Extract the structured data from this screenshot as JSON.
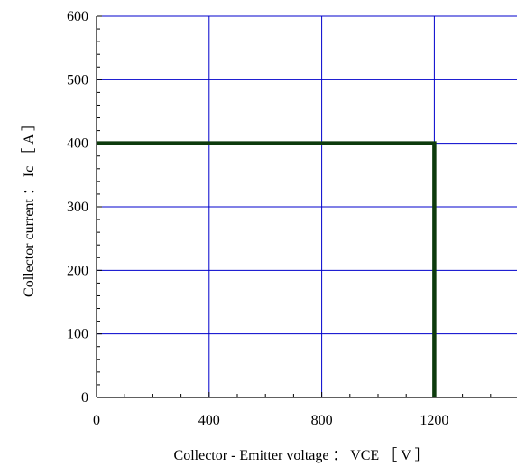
{
  "chart_data": {
    "type": "line",
    "title": "",
    "xlabel": "Collector - Emitter voltage ： VCE ［ V ］",
    "ylabel": "Collector current ： Ic ［ A ］",
    "xlim": [
      0,
      1500
    ],
    "ylim": [
      0,
      600
    ],
    "x_ticks": [
      0,
      400,
      800,
      1200
    ],
    "y_ticks": [
      0,
      100,
      200,
      300,
      400,
      500,
      600
    ],
    "x_minor_step": 100,
    "y_minor_step": 20,
    "grid": true,
    "colors": {
      "grid": "#0000cc",
      "axis": "#000000",
      "series": "#0d3b0d"
    },
    "series": [
      {
        "x": [
          0,
          1200,
          1200
        ],
        "y": [
          400,
          400,
          0
        ]
      }
    ]
  }
}
